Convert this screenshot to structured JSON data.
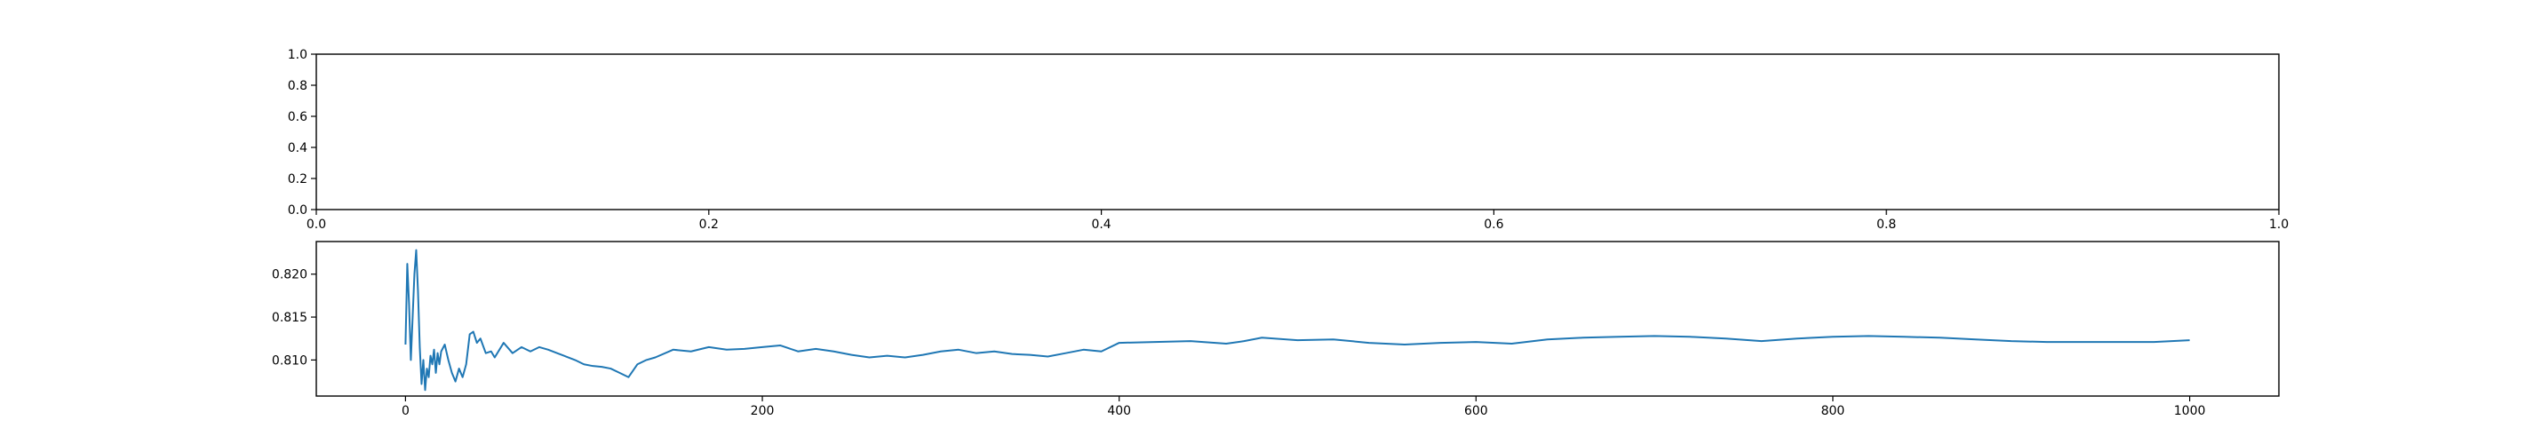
{
  "chart_data": [
    {
      "type": "line",
      "title": "",
      "xlabel": "",
      "ylabel": "",
      "xlim": [
        0.0,
        1.0
      ],
      "ylim": [
        0.0,
        1.0
      ],
      "xticks": [
        "0.0",
        "0.2",
        "0.4",
        "0.6",
        "0.8",
        "1.0"
      ],
      "yticks": [
        "0.0",
        "0.2",
        "0.4",
        "0.6",
        "0.8",
        "1.0"
      ],
      "grid": false,
      "series": []
    },
    {
      "type": "line",
      "title": "",
      "xlabel": "",
      "ylabel": "",
      "xlim": [
        -50,
        1050
      ],
      "ylim": [
        0.8058,
        0.8238
      ],
      "xticks": [
        "0",
        "200",
        "400",
        "600",
        "800",
        "1000"
      ],
      "yticks": [
        "0.810",
        "0.815",
        "0.820"
      ],
      "grid": false,
      "color": "#1f77b4",
      "series": [
        {
          "x": [
            0,
            1,
            2,
            3,
            4,
            5,
            6,
            7,
            8,
            9,
            10,
            11,
            12,
            13,
            14,
            15,
            16,
            17,
            18,
            19,
            20,
            22,
            24,
            26,
            28,
            30,
            32,
            34,
            36,
            38,
            40,
            42,
            45,
            48,
            50,
            55,
            60,
            65,
            70,
            75,
            80,
            85,
            90,
            95,
            100,
            105,
            110,
            115,
            120,
            125,
            130,
            135,
            140,
            150,
            160,
            170,
            180,
            190,
            200,
            210,
            220,
            230,
            240,
            250,
            260,
            270,
            280,
            290,
            300,
            310,
            320,
            330,
            340,
            350,
            360,
            370,
            380,
            390,
            400,
            420,
            440,
            460,
            470,
            480,
            500,
            520,
            540,
            560,
            580,
            600,
            620,
            640,
            660,
            680,
            700,
            720,
            740,
            760,
            780,
            800,
            820,
            840,
            860,
            880,
            900,
            920,
            940,
            960,
            980,
            1000
          ],
          "y": [
            0.8118,
            0.8212,
            0.8165,
            0.81,
            0.815,
            0.82,
            0.8228,
            0.818,
            0.8115,
            0.8072,
            0.81,
            0.8065,
            0.809,
            0.808,
            0.8105,
            0.8095,
            0.8112,
            0.8085,
            0.8108,
            0.8095,
            0.811,
            0.8118,
            0.81,
            0.8085,
            0.8075,
            0.809,
            0.808,
            0.8095,
            0.813,
            0.8133,
            0.812,
            0.8125,
            0.8108,
            0.811,
            0.8103,
            0.812,
            0.8108,
            0.8115,
            0.811,
            0.8115,
            0.8112,
            0.8108,
            0.8104,
            0.81,
            0.8095,
            0.8093,
            0.8092,
            0.809,
            0.8085,
            0.808,
            0.8095,
            0.81,
            0.8103,
            0.8112,
            0.811,
            0.8115,
            0.8112,
            0.8113,
            0.8115,
            0.8117,
            0.811,
            0.8113,
            0.811,
            0.8106,
            0.8103,
            0.8105,
            0.8103,
            0.8106,
            0.811,
            0.8112,
            0.8108,
            0.811,
            0.8107,
            0.8106,
            0.8104,
            0.8108,
            0.8112,
            0.811,
            0.812,
            0.8121,
            0.8122,
            0.8119,
            0.8122,
            0.8126,
            0.8123,
            0.8124,
            0.812,
            0.8118,
            0.812,
            0.8121,
            0.8119,
            0.8124,
            0.8126,
            0.8127,
            0.8128,
            0.8127,
            0.8125,
            0.8122,
            0.8125,
            0.8127,
            0.8128,
            0.8127,
            0.8126,
            0.8124,
            0.8122,
            0.8121,
            0.8121,
            0.8121,
            0.8121,
            0.8123
          ]
        }
      ]
    }
  ]
}
